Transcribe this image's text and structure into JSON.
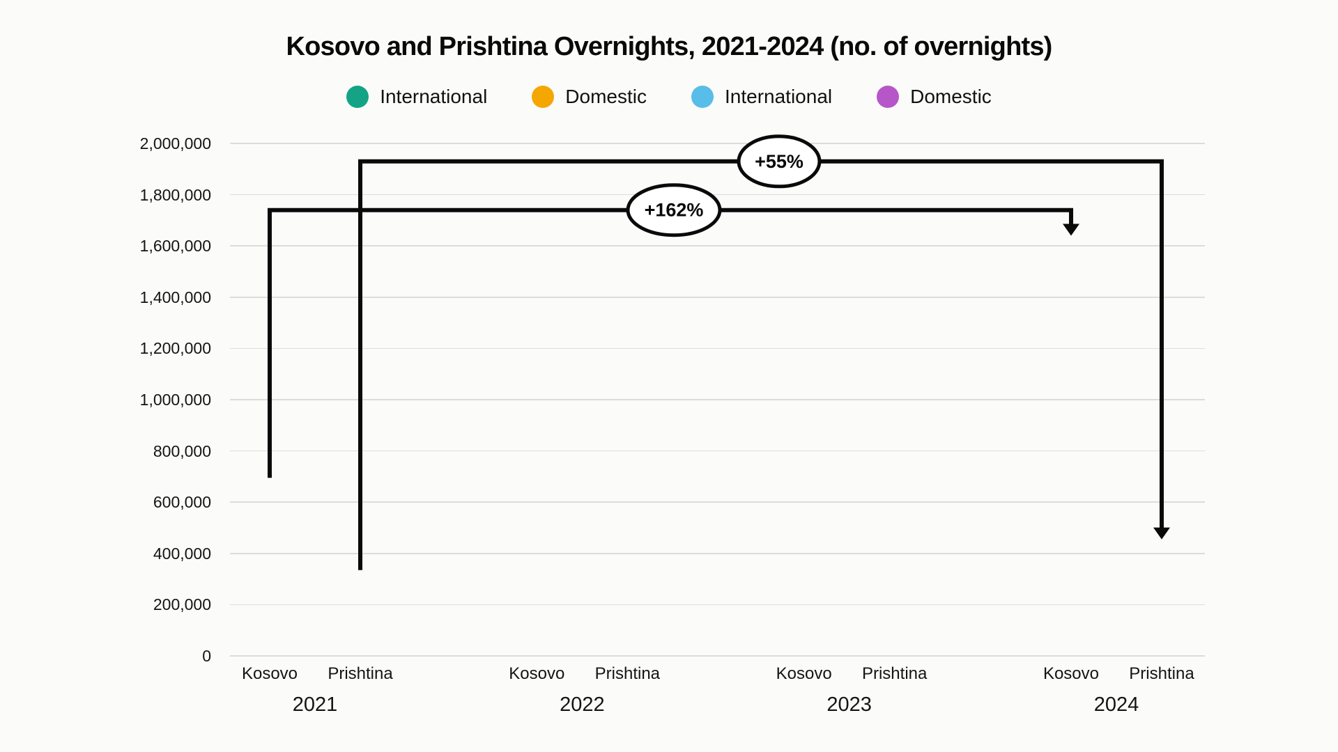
{
  "title": "Kosovo and Prishtina Overnights, 2021-2024 (no. of overnights)",
  "legend": {
    "position": "top",
    "items": [
      {
        "label": "International",
        "color": "#14a385"
      },
      {
        "label": "Domestic",
        "color": "#f4a701"
      },
      {
        "label": "International",
        "color": "#58bde8"
      },
      {
        "label": "Domestic",
        "color": "#b656c8"
      }
    ]
  },
  "chart_data": {
    "type": "bar",
    "title": "Kosovo and Prishtina Overnights, 2021-2024 (no. of overnights)",
    "note": "no bars are rendered in this frame; only gridlines, axes labels and growth annotations are visible",
    "series": [
      {
        "name": "International",
        "color": "#14a385"
      },
      {
        "name": "Domestic",
        "color": "#f4a701"
      },
      {
        "name": "International",
        "color": "#58bde8"
      },
      {
        "name": "Domestic",
        "color": "#b656c8"
      }
    ],
    "groups": [
      {
        "year": "2021",
        "cities": [
          "Kosovo",
          "Prishtina"
        ]
      },
      {
        "year": "2022",
        "cities": [
          "Kosovo",
          "Prishtina"
        ]
      },
      {
        "year": "2023",
        "cities": [
          "Kosovo",
          "Prishtina"
        ]
      },
      {
        "year": "2024",
        "cities": [
          "Kosovo",
          "Prishtina"
        ]
      }
    ],
    "y_axis": {
      "min": 0,
      "max": 2000000,
      "tick_step": 200000,
      "tick_labels": [
        "2,000,000",
        "1,800,000",
        "1,600,000",
        "1,400,000",
        "1,200,000",
        "1,000,000",
        "800,000",
        "600,000",
        "400,000",
        "200,000",
        "0"
      ]
    },
    "grid": true,
    "grid_color": "#dcdcdc",
    "background_color": "#fbfbf9",
    "annotation_color": "#0a0a0a",
    "annotations": [
      {
        "label": "+162%",
        "from_group": 0,
        "from_city": 0,
        "to_group": 3,
        "to_city": 0,
        "start_value": 695000,
        "line_value": 1740000,
        "end_value": 1640000
      },
      {
        "label": "+55%",
        "from_group": 0,
        "from_city": 1,
        "to_group": 3,
        "to_city": 1,
        "start_value": 335000,
        "line_value": 1930000,
        "end_value": 455000
      }
    ]
  }
}
